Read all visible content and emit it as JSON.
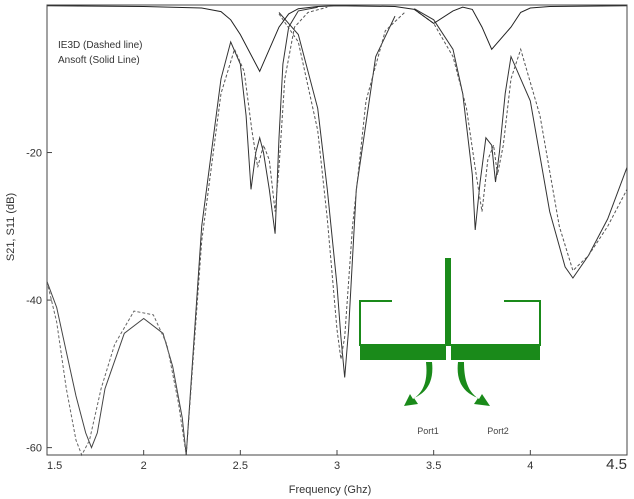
{
  "chart_data": {
    "type": "line",
    "title": "",
    "xlabel": "Frequency (Ghz)",
    "ylabel": "S21, S11 (dB)",
    "xlim": [
      1.5,
      4.5
    ],
    "ylim": [
      -61,
      0
    ],
    "x_ticks": [
      1.5,
      2,
      2.5,
      3,
      3.5,
      4,
      4.5
    ],
    "x_tick_labels": [
      "1.5",
      "2",
      "2.5",
      "3",
      "3.5",
      "4",
      "4.5"
    ],
    "y_ticks": [
      -20,
      -40,
      -60
    ],
    "y_tick_labels": [
      "-20",
      "-40",
      "-60"
    ],
    "grid": false,
    "legend_lines": [
      "IE3D (Dashed line)",
      "Ansoft (Solid Line)"
    ],
    "legend_placement": "top-left",
    "inset_labels": [
      "Port1",
      "Port2"
    ],
    "series": [
      {
        "style": "solid",
        "color": "#444444",
        "x": [
          1.5,
          1.55,
          1.6,
          1.65,
          1.7,
          1.73,
          1.76,
          1.8,
          1.9,
          2.0,
          2.1,
          2.15,
          2.2,
          2.22
        ],
        "y": [
          -37.5,
          -41,
          -47,
          -53,
          -58,
          -60,
          -58,
          -52,
          -44.5,
          -42.5,
          -44.5,
          -49,
          -56,
          -61
        ]
      },
      {
        "style": "dashed",
        "color": "#666666",
        "x": [
          1.5,
          1.55,
          1.6,
          1.65,
          1.68,
          1.72,
          1.78,
          1.85,
          1.95,
          2.05,
          2.12,
          2.18,
          2.22
        ],
        "y": [
          -37.5,
          -43,
          -52,
          -59,
          -61,
          -59,
          -52,
          -46,
          -41.5,
          -42,
          -46,
          -54,
          -61
        ]
      },
      {
        "style": "solid",
        "color": "#333333",
        "x": [
          2.22,
          2.3,
          2.4,
          2.45,
          2.5,
          2.53,
          2.555,
          2.58,
          2.6,
          2.62,
          2.65,
          2.68,
          2.7,
          2.72,
          2.75,
          2.8,
          2.9
        ],
        "y": [
          -61,
          -30,
          -10,
          -5,
          -8,
          -15,
          -25,
          -20,
          -18,
          -20,
          -25,
          -31,
          -18,
          -8,
          -3,
          -0.8,
          -0.3
        ]
      },
      {
        "style": "dashed",
        "color": "#555555",
        "x": [
          2.22,
          2.3,
          2.4,
          2.47,
          2.52,
          2.56,
          2.59,
          2.62,
          2.65,
          2.68,
          2.7,
          2.73,
          2.78,
          2.85,
          2.95
        ],
        "y": [
          -61,
          -32,
          -12,
          -6,
          -9,
          -17,
          -22,
          -19,
          -21,
          -28,
          -22,
          -10,
          -3,
          -1,
          -0.3
        ]
      },
      {
        "style": "solid",
        "color": "#333333",
        "x": [
          2.7,
          2.8,
          2.9,
          2.95,
          3.0,
          3.02,
          3.04,
          3.06,
          3.1,
          3.2,
          3.3
        ],
        "y": [
          -1,
          -4,
          -14,
          -25,
          -38,
          -45,
          -50.5,
          -44,
          -25,
          -7,
          -1.5
        ]
      },
      {
        "style": "dashed",
        "color": "#555555",
        "x": [
          2.7,
          2.8,
          2.9,
          2.95,
          3.0,
          3.02,
          3.04,
          3.08,
          3.15,
          3.25,
          3.35
        ],
        "y": [
          -1.2,
          -5,
          -17,
          -29,
          -44,
          -48,
          -45,
          -30,
          -13,
          -3.5,
          -1
        ]
      },
      {
        "style": "solid",
        "color": "#333333",
        "x": [
          3.4,
          3.5,
          3.6,
          3.65,
          3.7,
          3.715,
          3.74,
          3.77,
          3.8,
          3.82,
          3.84,
          3.87,
          3.9,
          4.0,
          4.1,
          4.18,
          4.22,
          4.3,
          4.4,
          4.5
        ],
        "y": [
          -0.5,
          -2,
          -6,
          -12,
          -23,
          -30.5,
          -24,
          -18,
          -19,
          -24,
          -20,
          -12,
          -7,
          -13,
          -28,
          -35.5,
          -37,
          -34,
          -29,
          -22
        ]
      },
      {
        "style": "dashed",
        "color": "#555555",
        "x": [
          3.4,
          3.5,
          3.6,
          3.67,
          3.72,
          3.75,
          3.78,
          3.81,
          3.83,
          3.86,
          3.9,
          3.95,
          4.05,
          4.15,
          4.22,
          4.3,
          4.4,
          4.5
        ],
        "y": [
          -0.6,
          -2.5,
          -7,
          -14,
          -23,
          -28,
          -21,
          -19,
          -23,
          -19,
          -10,
          -6,
          -15,
          -30,
          -36,
          -34,
          -30,
          -25
        ]
      },
      {
        "style": "solid",
        "color": "#222222",
        "x": [
          1.5,
          2.0,
          2.3,
          2.4,
          2.45,
          2.5,
          2.6,
          2.7,
          2.75,
          2.8,
          2.9,
          3.0,
          3.3,
          3.4,
          3.5,
          3.6,
          3.65,
          3.7,
          3.75,
          3.8,
          3.9,
          3.95,
          4.0,
          4.1,
          4.5
        ],
        "y": [
          -0.1,
          -0.2,
          -0.4,
          -0.9,
          -2,
          -4,
          -9,
          -3,
          -1.2,
          -0.5,
          -0.2,
          -0.1,
          -0.2,
          -0.6,
          -2.5,
          -0.8,
          -0.3,
          -0.6,
          -3,
          -6,
          -3,
          -1,
          -0.4,
          -0.2,
          -0.1
        ]
      }
    ]
  },
  "colors": {
    "axis": "#444444",
    "inset_green": "#1a8a1a"
  }
}
